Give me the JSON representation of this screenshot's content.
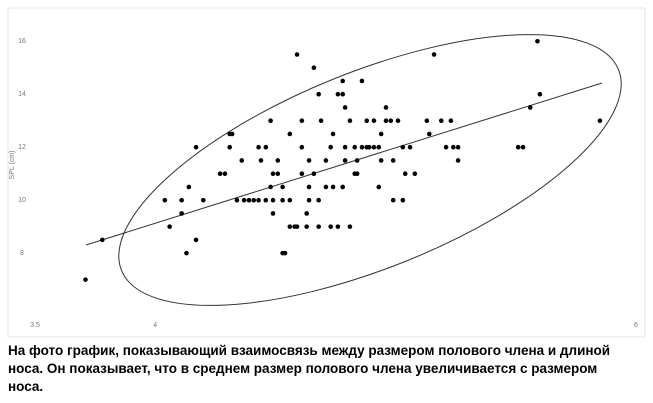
{
  "chart_data": {
    "type": "scatter",
    "y_label": "SPL (cm)",
    "xlim": [
      3.5,
      6
    ],
    "xticks": [
      3.5,
      4,
      6
    ],
    "ylim": [
      5.1,
      16.5
    ],
    "yticks": [
      8,
      10,
      12,
      14,
      16
    ],
    "color": "#000000",
    "x": [
      3.71,
      3.78,
      4.04,
      4.06,
      4.11,
      4.11,
      4.13,
      4.14,
      4.17,
      4.17,
      4.2,
      4.27,
      4.29,
      4.31,
      4.32,
      4.31,
      4.34,
      4.36,
      4.37,
      4.39,
      4.41,
      4.43,
      4.43,
      4.44,
      4.46,
      4.46,
      4.48,
      4.48,
      4.49,
      4.49,
      4.49,
      4.51,
      4.51,
      4.53,
      4.53,
      4.53,
      4.54,
      4.56,
      4.56,
      4.56,
      4.58,
      4.59,
      4.59,
      4.61,
      4.61,
      4.61,
      4.63,
      4.63,
      4.64,
      4.64,
      4.64,
      4.66,
      4.66,
      4.68,
      4.68,
      4.68,
      4.69,
      4.71,
      4.71,
      4.73,
      4.73,
      4.74,
      4.74,
      4.76,
      4.76,
      4.78,
      4.78,
      4.78,
      4.79,
      4.79,
      4.79,
      4.81,
      4.81,
      4.83,
      4.83,
      4.84,
      4.84,
      4.86,
      4.86,
      4.88,
      4.88,
      4.89,
      4.91,
      4.91,
      4.93,
      4.93,
      4.94,
      4.94,
      4.96,
      4.96,
      4.98,
      4.99,
      4.99,
      5.01,
      5.03,
      5.03,
      5.04,
      5.06,
      5.08,
      5.13,
      5.14,
      5.16,
      5.19,
      5.21,
      5.23,
      5.24,
      5.26,
      5.26,
      5.51,
      5.53,
      5.56,
      5.59,
      5.6,
      5.85
    ],
    "y": [
      7,
      8.5,
      10,
      9,
      10,
      9.5,
      8,
      10.5,
      8.5,
      12,
      10,
      11,
      11,
      12.5,
      12.5,
      12,
      10,
      11.5,
      10,
      10,
      10,
      10,
      12,
      11.5,
      12,
      10,
      13,
      10.5,
      11,
      10,
      9.5,
      11,
      11.5,
      10.5,
      10,
      8,
      8,
      12.5,
      10,
      9,
      9,
      15.5,
      9,
      13,
      12,
      11,
      9.5,
      9,
      11.5,
      10.5,
      10,
      15,
      11,
      14,
      10,
      9,
      13,
      11.5,
      10.5,
      12,
      9,
      12.5,
      10.5,
      14,
      9,
      14,
      14.5,
      10.5,
      13.5,
      12,
      11.5,
      13,
      9,
      12,
      11,
      11.5,
      11,
      14.5,
      12,
      13,
      12,
      12,
      13,
      12,
      12,
      10.5,
      12.5,
      11.5,
      13,
      13.5,
      13,
      10,
      11.5,
      13,
      12,
      10,
      11,
      12,
      11,
      13,
      12.5,
      15.5,
      13,
      12,
      13,
      12,
      11.5,
      12,
      12,
      12,
      13.5,
      16,
      14,
      13
    ],
    "caption": [
      "На фото график, показывающий взаимосвязь между размером полового члена и длиной",
      "носа. Он показывает, что в среднем размер полового члена увеличивается с размером",
      "носа."
    ]
  }
}
